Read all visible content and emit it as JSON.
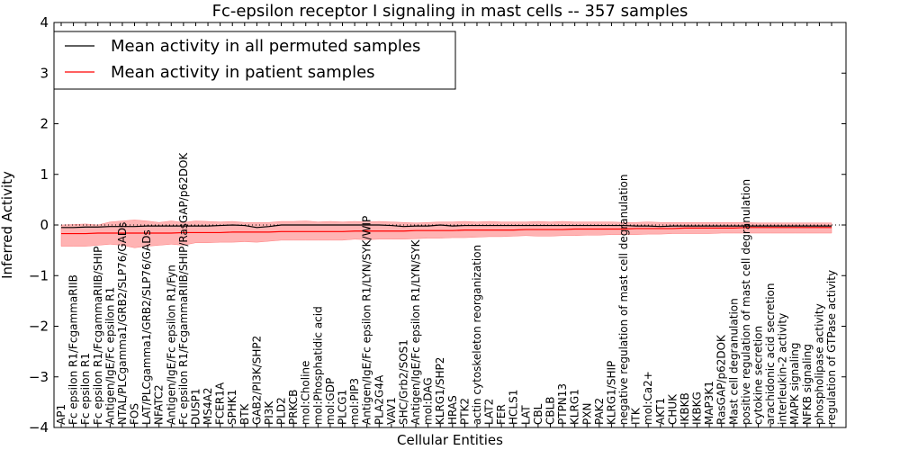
{
  "chart_data": {
    "type": "line",
    "title": "Fc-epsilon receptor I signaling in mast cells -- 357 samples",
    "xlabel": "Cellular Entities",
    "ylabel": "Inferred Activity",
    "ylim": [
      -4,
      4
    ],
    "yticks": [
      "4",
      "3",
      "2",
      "1",
      "0",
      "−1",
      "−2",
      "−3",
      "−4"
    ],
    "legend": {
      "position": "top-left",
      "entries": [
        {
          "label": "Mean activity in all permuted samples",
          "color": "#000000"
        },
        {
          "label": "Mean activity in patient samples",
          "color": "#ff0000"
        }
      ]
    },
    "categories": [
      "AP1",
      "Fc epsilon R1/FcgammaRIIB",
      "Fc epsilon R1",
      "Fc epsilon R1/FcgammaRIIB/SHIP",
      "Antigen/IgE/Fc epsilon R1",
      "NTAL/PLCgamma1/GRB2/SLP76/GADs",
      "FOS",
      "LAT/PLCgamma1/GRB2/SLP76/GADs",
      "NFATC2",
      "Antigen/IgE/Fc epsilon R1/Fyn",
      "Fc epsilon R1/FcgammaRIIB/SHIP/RasGAP/p62DOK",
      "DUSP1",
      "MS4A2",
      "FCER1A",
      "SPHK1",
      "BTK",
      "GAB2/PI3K/SHP2",
      "PI3K",
      "PLD2",
      "PRKCB",
      "mol:Choline",
      "mol:Phosphatidic acid",
      "mol:GDP",
      "PLCG1",
      "mol:PIP3",
      "Antigen/IgE/Fc epsilon R1/LYN/SYK/WIP",
      "PLA2G4A",
      "VAV1",
      "SHC/Grb2/SOS1",
      "Antigen/IgE/Fc epsilon R1/LYN/SYK",
      "mol:DAG",
      "KLRG1/SHP2",
      "HRAS",
      "PTK2",
      "actin cytoskeleton reorganization",
      "LAT2",
      "FER",
      "HCLS1",
      "LAT",
      "CBL",
      "CBLB",
      "PTPN13",
      "KLRG1",
      "PXN",
      "PAK2",
      "KLRG1/SHIP",
      "negative regulation of mast cell degranulation",
      "ITK",
      "mol:Ca2+",
      "AKT1",
      "CHUK",
      "IKBKB",
      "IKBKG",
      "MAP3K1",
      "RasGAP/p62DOK",
      "Mast cell degranulation",
      "positive regulation of mast cell degranulation",
      "cytokine secretion",
      "arachidonic acid secretion",
      "interleukin-2 activity",
      "MAPK signaling",
      "NFKB signaling",
      "phospholipase activity",
      "regulation of GTPase activity"
    ],
    "series": [
      {
        "name": "Mean activity in all permuted samples",
        "color": "#000000",
        "values": [
          -0.05,
          -0.05,
          -0.04,
          -0.04,
          -0.03,
          -0.03,
          -0.03,
          -0.02,
          -0.02,
          -0.02,
          -0.02,
          -0.02,
          -0.02,
          -0.01,
          0.0,
          -0.01,
          -0.05,
          -0.03,
          0.0,
          0.0,
          0.0,
          0.0,
          0.0,
          0.0,
          0.0,
          0.0,
          0.0,
          -0.01,
          -0.03,
          -0.02,
          -0.02,
          0.0,
          -0.02,
          -0.01,
          -0.01,
          -0.01,
          -0.01,
          -0.01,
          -0.01,
          -0.01,
          -0.01,
          -0.01,
          -0.01,
          -0.01,
          -0.01,
          -0.01,
          -0.01,
          -0.02,
          -0.02,
          -0.03,
          -0.02,
          -0.02,
          -0.02,
          -0.02,
          -0.02,
          -0.02,
          -0.02,
          -0.02,
          -0.02,
          -0.02,
          -0.02,
          -0.02,
          -0.02,
          -0.02
        ]
      },
      {
        "name": "Mean activity in patient samples",
        "color": "#ff0000",
        "values": [
          -0.17,
          -0.17,
          -0.17,
          -0.16,
          -0.16,
          -0.16,
          -0.16,
          -0.16,
          -0.16,
          -0.16,
          -0.15,
          -0.15,
          -0.15,
          -0.15,
          -0.14,
          -0.14,
          -0.14,
          -0.14,
          -0.13,
          -0.13,
          -0.13,
          -0.13,
          -0.13,
          -0.13,
          -0.12,
          -0.12,
          -0.12,
          -0.12,
          -0.12,
          -0.11,
          -0.11,
          -0.11,
          -0.11,
          -0.1,
          -0.1,
          -0.1,
          -0.1,
          -0.1,
          -0.09,
          -0.09,
          -0.09,
          -0.09,
          -0.08,
          -0.08,
          -0.08,
          -0.08,
          -0.08,
          -0.07,
          -0.07,
          -0.07,
          -0.07,
          -0.06,
          -0.06,
          -0.06,
          -0.06,
          -0.06,
          -0.05,
          -0.05,
          -0.05,
          -0.05,
          -0.05,
          -0.05,
          -0.05,
          -0.05
        ]
      }
    ],
    "band": {
      "name": "patient activity spread",
      "color": "#ff8080",
      "upper": [
        0.0,
        0.01,
        0.02,
        0.0,
        0.06,
        0.08,
        0.1,
        0.08,
        0.05,
        0.08,
        0.05,
        0.08,
        0.07,
        0.06,
        0.07,
        0.05,
        0.05,
        0.05,
        0.07,
        0.07,
        0.08,
        0.06,
        0.07,
        0.06,
        0.07,
        0.06,
        0.07,
        0.06,
        0.05,
        0.04,
        0.05,
        0.06,
        0.06,
        0.07,
        0.06,
        0.07,
        0.06,
        0.06,
        0.06,
        0.07,
        0.06,
        0.07,
        0.06,
        0.06,
        0.06,
        0.06,
        0.05,
        0.05,
        0.06,
        0.05,
        0.05,
        0.05,
        0.05,
        0.05,
        0.05,
        0.05,
        0.05,
        0.04,
        0.04,
        0.04,
        0.04,
        0.04,
        0.04,
        0.04
      ],
      "lower": [
        -0.42,
        -0.42,
        -0.42,
        -0.4,
        -0.38,
        -0.4,
        -0.45,
        -0.42,
        -0.4,
        -0.38,
        -0.4,
        -0.35,
        -0.35,
        -0.34,
        -0.34,
        -0.33,
        -0.34,
        -0.32,
        -0.3,
        -0.3,
        -0.3,
        -0.3,
        -0.3,
        -0.3,
        -0.28,
        -0.29,
        -0.28,
        -0.28,
        -0.28,
        -0.27,
        -0.26,
        -0.26,
        -0.25,
        -0.25,
        -0.24,
        -0.23,
        -0.23,
        -0.22,
        -0.21,
        -0.22,
        -0.22,
        -0.21,
        -0.21,
        -0.2,
        -0.2,
        -0.19,
        -0.19,
        -0.19,
        -0.18,
        -0.18,
        -0.17,
        -0.17,
        -0.17,
        -0.17,
        -0.16,
        -0.16,
        -0.16,
        -0.16,
        -0.16,
        -0.16,
        -0.16,
        -0.16,
        -0.16,
        -0.16
      ]
    }
  }
}
